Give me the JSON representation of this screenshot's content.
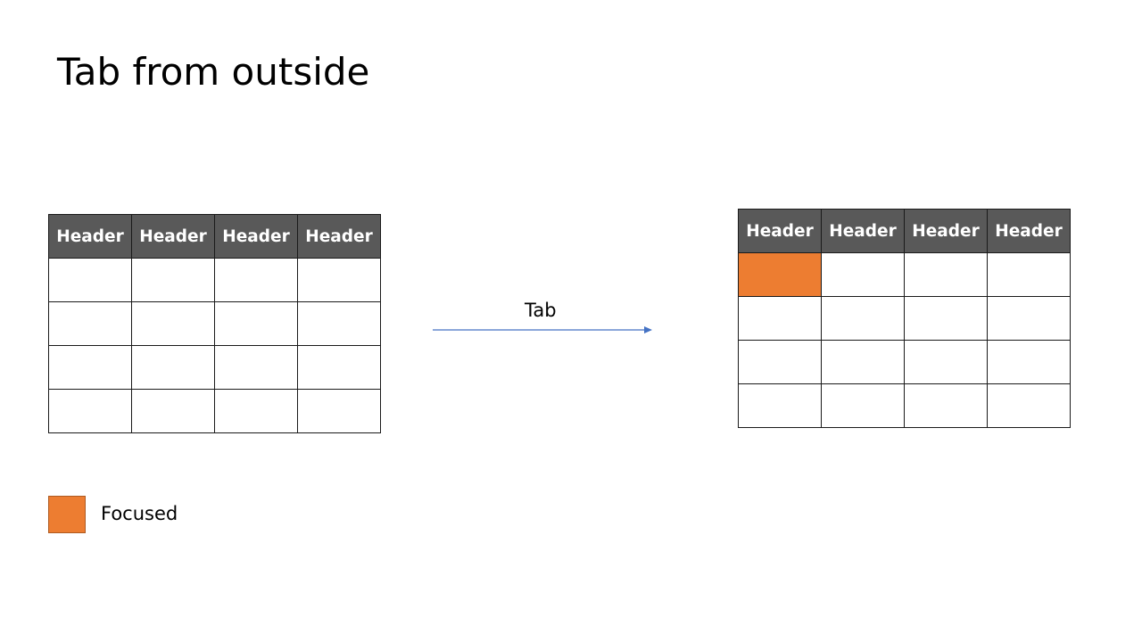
{
  "title": "Tab from outside",
  "before_table": {
    "headers": [
      "Header",
      "Header",
      "Header",
      "Header"
    ],
    "rows": [
      [
        "",
        "",
        "",
        ""
      ],
      [
        "",
        "",
        "",
        ""
      ],
      [
        "",
        "",
        "",
        ""
      ],
      [
        "",
        "",
        "",
        ""
      ]
    ]
  },
  "transition": {
    "label": "Tab",
    "arrow_color": "#4472c4"
  },
  "after_table": {
    "headers": [
      "Header",
      "Header",
      "Header",
      "Header"
    ],
    "rows": [
      [
        "",
        "",
        "",
        ""
      ],
      [
        "",
        "",
        "",
        ""
      ],
      [
        "",
        "",
        "",
        ""
      ],
      [
        "",
        "",
        "",
        ""
      ]
    ],
    "focused_cell": {
      "row": 1,
      "column": 1
    }
  },
  "legend": {
    "label": "Focused",
    "color": "#ed7d31"
  },
  "colors": {
    "header_background": "#595959",
    "header_text": "#ffffff",
    "grid_lines": "#1a1a1a"
  }
}
